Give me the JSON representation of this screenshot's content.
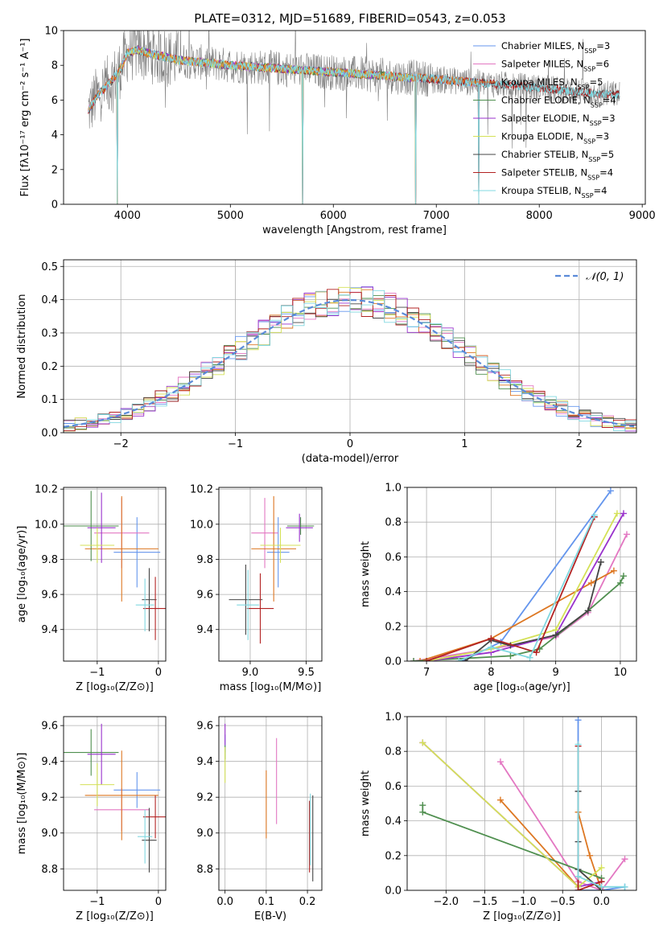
{
  "title": "PLATE=0312, MJD=51689, FIBERID=0543, z=0.053",
  "colors": {
    "Chabrier MILES": "#6495ED",
    "Salpeter MILES": "#E377C2",
    "Kroupa MILES": "#DD7722",
    "Chabrier ELODIE": "#4F8F4F",
    "Salpeter ELODIE": "#9932CC",
    "Kroupa ELODIE": "#D4E157",
    "Chabrier STELIB": "#444444",
    "Salpeter STELIB": "#B22222",
    "Kroupa STELIB": "#80D8E0",
    "data": "#808080",
    "gauss": "#5B8BD8"
  },
  "chart_data": [
    {
      "id": "spectrum",
      "type": "line",
      "title": "PLATE=0312, MJD=51689, FIBERID=0543, z=0.053",
      "xlabel": "wavelength [Angstrom, rest frame]",
      "ylabel": "Flux [fλ10⁻¹⁷ erg cm⁻² s⁻¹ A⁻¹]",
      "xlim": [
        3380,
        9030
      ],
      "ylim": [
        0,
        10
      ],
      "xticks": [
        4000,
        5000,
        6000,
        7000,
        8000,
        9000
      ],
      "yticks": [
        0,
        2,
        4,
        6,
        8,
        10
      ],
      "grid": false,
      "legend": "top-right",
      "legend_entries": [
        {
          "name": "Chabrier MILES",
          "nssp": "3"
        },
        {
          "name": "Salpeter MILES",
          "nssp": "6"
        },
        {
          "name": "Kroupa MILES",
          "nssp": "5"
        },
        {
          "name": "Chabrier ELODIE",
          "nssp": "4"
        },
        {
          "name": "Salpeter ELODIE",
          "nssp": "3"
        },
        {
          "name": "Kroupa ELODIE",
          "nssp": "3"
        },
        {
          "name": "Chabrier STELIB",
          "nssp": "5"
        },
        {
          "name": "Salpeter STELIB",
          "nssp": "4"
        },
        {
          "name": "Kroupa STELIB",
          "nssp": "4"
        }
      ],
      "data_range": [
        3620,
        8780
      ],
      "continuum": {
        "wavelength": [
          3620,
          3700,
          3800,
          3900,
          3950,
          4000,
          4100,
          4200,
          4500,
          5000,
          5500,
          6000,
          6500,
          7000,
          7400,
          8000,
          8500,
          8780
        ],
        "flux": [
          5.4,
          6.2,
          6.8,
          7.5,
          8.0,
          8.7,
          8.9,
          8.7,
          8.3,
          8.0,
          7.8,
          7.6,
          7.4,
          7.2,
          7.0,
          6.7,
          6.4,
          6.3
        ]
      },
      "model_ranges": {
        "MILES": [
          3620,
          7410
        ],
        "ELODIE": [
          3900,
          6800
        ],
        "STELIB": [
          3620,
          8780
        ]
      },
      "model_dropouts": [
        3900,
        5700,
        6800,
        7410
      ]
    },
    {
      "id": "residuals",
      "type": "histogram",
      "xlabel": "(data-model)/error",
      "ylabel": "Normed distribution",
      "xlim": [
        -2.5,
        2.5
      ],
      "ylim": [
        0,
        0.52
      ],
      "xticks": [
        -2,
        -1,
        0,
        1,
        2
      ],
      "yticks": [
        0.0,
        0.1,
        0.2,
        0.3,
        0.4,
        0.5
      ],
      "grid": true,
      "legend": "top-right",
      "legend_entries": [
        {
          "name": "𝒩(0, 1)"
        }
      ],
      "bin_width": 0.1,
      "model_curve": "gaussian mean 0 sigma 1"
    },
    {
      "id": "age-vs-Z",
      "type": "errorbar",
      "xlabel": "Z [log₁₀(Z/Z⊙)]",
      "ylabel": "age  [log₁₀(age/yr)]",
      "xlim": [
        -1.55,
        0.12
      ],
      "ylim": [
        9.22,
        10.21
      ],
      "xticks": [
        -1,
        0
      ],
      "yticks": [
        9.4,
        9.6,
        9.8,
        10.0,
        10.2
      ],
      "grid": true,
      "points": [
        {
          "model": "Chabrier MILES",
          "x": -0.35,
          "y": 9.84,
          "xerr": 0.38,
          "yerr": 0.2
        },
        {
          "model": "Salpeter MILES",
          "x": -0.6,
          "y": 9.95,
          "xerr": 0.45,
          "yerr": 0.2
        },
        {
          "model": "Kroupa MILES",
          "x": -0.6,
          "y": 9.86,
          "xerr": 0.6,
          "yerr": 0.3
        },
        {
          "model": "Chabrier ELODIE",
          "x": -1.1,
          "y": 9.99,
          "xerr": 0.45,
          "yerr": 0.2
        },
        {
          "model": "Salpeter ELODIE",
          "x": -0.93,
          "y": 9.98,
          "xerr": 0.23,
          "yerr": 0.2
        },
        {
          "model": "Kroupa ELODIE",
          "x": -1.0,
          "y": 9.88,
          "xerr": 0.28,
          "yerr": 0.1
        },
        {
          "model": "Chabrier STELIB",
          "x": -0.15,
          "y": 9.57,
          "xerr": 0.12,
          "yerr": 0.18
        },
        {
          "model": "Salpeter STELIB",
          "x": -0.05,
          "y": 9.52,
          "xerr": 0.2,
          "yerr": 0.18
        },
        {
          "model": "Kroupa STELIB",
          "x": -0.22,
          "y": 9.54,
          "xerr": 0.15,
          "yerr": 0.15
        }
      ]
    },
    {
      "id": "age-vs-mass",
      "type": "errorbar",
      "xlabel": "mass [log₁₀(M/M⊙)]",
      "ylabel": "",
      "xlim": [
        8.72,
        9.64
      ],
      "ylim": [
        9.22,
        10.21
      ],
      "xticks": [
        9.0,
        9.5
      ],
      "yticks": [
        9.4,
        9.6,
        9.8,
        10.0,
        10.2
      ],
      "grid": true,
      "points": [
        {
          "model": "Chabrier MILES",
          "x": 9.25,
          "y": 9.84,
          "xerr": 0.1,
          "yerr": 0.2
        },
        {
          "model": "Salpeter MILES",
          "x": 9.13,
          "y": 9.95,
          "xerr": 0.12,
          "yerr": 0.2
        },
        {
          "model": "Kroupa MILES",
          "x": 9.21,
          "y": 9.86,
          "xerr": 0.2,
          "yerr": 0.3
        },
        {
          "model": "Chabrier ELODIE",
          "x": 9.45,
          "y": 9.99,
          "xerr": 0.12,
          "yerr": 0.05
        },
        {
          "model": "Salpeter ELODIE",
          "x": 9.44,
          "y": 9.98,
          "xerr": 0.12,
          "yerr": 0.08
        },
        {
          "model": "Kroupa ELODIE",
          "x": 9.27,
          "y": 9.88,
          "xerr": 0.18,
          "yerr": 0.1
        },
        {
          "model": "Chabrier STELIB",
          "x": 8.96,
          "y": 9.57,
          "xerr": 0.15,
          "yerr": 0.2
        },
        {
          "model": "Salpeter STELIB",
          "x": 9.09,
          "y": 9.52,
          "xerr": 0.12,
          "yerr": 0.2
        },
        {
          "model": "Kroupa STELIB",
          "x": 8.98,
          "y": 9.54,
          "xerr": 0.1,
          "yerr": 0.2
        }
      ]
    },
    {
      "id": "massweight-vs-age",
      "type": "line",
      "xlabel": "age  [log₁₀(age/yr)]",
      "ylabel": "mass weight",
      "xlim": [
        6.7,
        10.25
      ],
      "ylim": [
        0,
        1
      ],
      "xticks": [
        7,
        8,
        9,
        10
      ],
      "yticks": [
        0.0,
        0.2,
        0.4,
        0.6,
        0.8,
        1.0
      ],
      "grid": true,
      "series": [
        {
          "model": "Chabrier MILES",
          "x": [
            7.55,
            8.15,
            9.85
          ],
          "y": [
            0.0,
            0.11,
            0.98
          ]
        },
        {
          "model": "Salpeter MILES",
          "x": [
            6.8,
            8.0,
            9.0,
            9.5,
            10.1
          ],
          "y": [
            0.0,
            0.07,
            0.14,
            0.28,
            0.73
          ]
        },
        {
          "model": "Kroupa MILES",
          "x": [
            6.9,
            8.0,
            9.55,
            9.9
          ],
          "y": [
            0.0,
            0.13,
            0.45,
            0.52
          ]
        },
        {
          "model": "Chabrier ELODIE",
          "x": [
            6.8,
            8.3,
            8.75,
            9.5,
            10.0,
            10.05
          ],
          "y": [
            0.0,
            0.03,
            0.07,
            0.29,
            0.45,
            0.49
          ]
        },
        {
          "model": "Salpeter ELODIE",
          "x": [
            7.0,
            8.0,
            9.0,
            10.05
          ],
          "y": [
            0.0,
            0.05,
            0.15,
            0.85
          ]
        },
        {
          "model": "Kroupa ELODIE",
          "x": [
            7.0,
            8.0,
            9.0,
            9.95
          ],
          "y": [
            0.0,
            0.07,
            0.18,
            0.85
          ]
        },
        {
          "model": "Chabrier STELIB",
          "x": [
            7.6,
            8.0,
            8.3,
            9.0,
            9.5,
            9.7
          ],
          "y": [
            0.0,
            0.12,
            0.09,
            0.15,
            0.29,
            0.57
          ]
        },
        {
          "model": "Salpeter STELIB",
          "x": [
            7.0,
            8.0,
            8.7,
            9.6
          ],
          "y": [
            0.0,
            0.13,
            0.05,
            0.83
          ]
        },
        {
          "model": "Kroupa STELIB",
          "x": [
            7.5,
            8.0,
            8.6,
            9.6
          ],
          "y": [
            0.0,
            0.08,
            0.02,
            0.84
          ]
        }
      ]
    },
    {
      "id": "mass-vs-Z",
      "type": "errorbar",
      "xlabel": "Z [log₁₀(Z/Z⊙)]",
      "ylabel": "mass [log₁₀(M/M⊙)]",
      "xlim": [
        -1.55,
        0.12
      ],
      "ylim": [
        8.68,
        9.65
      ],
      "xticks": [
        -1,
        0
      ],
      "yticks": [
        8.8,
        9.0,
        9.2,
        9.4,
        9.6
      ],
      "grid": true,
      "points": [
        {
          "model": "Chabrier MILES",
          "x": -0.35,
          "y": 9.24,
          "xerr": 0.38,
          "yerr": 0.1
        },
        {
          "model": "Salpeter MILES",
          "x": -0.6,
          "y": 9.13,
          "xerr": 0.45,
          "yerr": 0.12
        },
        {
          "model": "Kroupa MILES",
          "x": -0.6,
          "y": 9.21,
          "xerr": 0.6,
          "yerr": 0.25
        },
        {
          "model": "Chabrier ELODIE",
          "x": -1.1,
          "y": 9.45,
          "xerr": 0.45,
          "yerr": 0.13
        },
        {
          "model": "Salpeter ELODIE",
          "x": -0.93,
          "y": 9.44,
          "xerr": 0.23,
          "yerr": 0.17
        },
        {
          "model": "Kroupa ELODIE",
          "x": -1.0,
          "y": 9.27,
          "xerr": 0.28,
          "yerr": 0.12
        },
        {
          "model": "Chabrier STELIB",
          "x": -0.15,
          "y": 8.96,
          "xerr": 0.12,
          "yerr": 0.18
        },
        {
          "model": "Salpeter STELIB",
          "x": -0.05,
          "y": 9.09,
          "xerr": 0.2,
          "yerr": 0.12
        },
        {
          "model": "Kroupa STELIB",
          "x": -0.22,
          "y": 8.98,
          "xerr": 0.12,
          "yerr": 0.15
        }
      ]
    },
    {
      "id": "mass-vs-EBV",
      "type": "errorbar",
      "xlabel": "E(B-V)",
      "ylabel": "",
      "xlim": [
        -0.015,
        0.235
      ],
      "ylim": [
        8.68,
        9.65
      ],
      "xticks": [
        0.0,
        0.1,
        0.2
      ],
      "yticks": [
        8.8,
        9.0,
        9.2,
        9.4,
        9.6
      ],
      "grid": true,
      "points": [
        {
          "model": "Chabrier MILES",
          "x": 0.0,
          "y": 9.5,
          "xerr": 0,
          "yerr": 0.05
        },
        {
          "model": "Salpeter MILES",
          "x": 0.125,
          "y": 9.29,
          "xerr": 0,
          "yerr": 0.24
        },
        {
          "model": "Kroupa MILES",
          "x": 0.1,
          "y": 9.16,
          "xerr": 0,
          "yerr": 0.19
        },
        {
          "model": "Chabrier ELODIE",
          "x": 0.0,
          "y": 9.45,
          "xerr": 0,
          "yerr": 0.04
        },
        {
          "model": "Salpeter ELODIE",
          "x": 0.0,
          "y": 9.55,
          "xerr": 0,
          "yerr": 0.06
        },
        {
          "model": "Kroupa ELODIE",
          "x": 0.0,
          "y": 9.38,
          "xerr": 0,
          "yerr": 0.1
        },
        {
          "model": "Chabrier STELIB",
          "x": 0.213,
          "y": 8.97,
          "xerr": 0,
          "yerr": 0.24
        },
        {
          "model": "Salpeter STELIB",
          "x": 0.205,
          "y": 8.98,
          "xerr": 0,
          "yerr": 0.2
        },
        {
          "model": "Kroupa STELIB",
          "x": 0.207,
          "y": 9.02,
          "xerr": 0,
          "yerr": 0.2
        }
      ]
    },
    {
      "id": "massweight-vs-Z",
      "type": "line",
      "xlabel": "Z [log₁₀(Z/Z⊙)]",
      "ylabel": "mass weight",
      "xlim": [
        -2.5,
        0.45
      ],
      "ylim": [
        0,
        1
      ],
      "xticks": [
        -2.0,
        -1.5,
        -1.0,
        -0.5,
        0.0
      ],
      "yticks": [
        0.0,
        0.2,
        0.4,
        0.6,
        0.8,
        1.0
      ],
      "grid": true,
      "series": [
        {
          "model": "Chabrier MILES",
          "x": [
            -0.3,
            -0.3,
            0.0,
            0.3
          ],
          "y": [
            0.98,
            0.0,
            0.0,
            0.02
          ]
        },
        {
          "model": "Salpeter MILES",
          "x": [
            -1.3,
            -0.3,
            0.0,
            0.3
          ],
          "y": [
            0.74,
            0.05,
            0.0,
            0.18
          ]
        },
        {
          "model": "Kroupa MILES",
          "x": [
            -1.3,
            -0.3,
            -0.3,
            -0.15,
            0.0
          ],
          "y": [
            0.52,
            0.02,
            0.45,
            0.2,
            0.0
          ]
        },
        {
          "model": "Chabrier ELODIE",
          "x": [
            -2.3,
            -2.3,
            0.0
          ],
          "y": [
            0.49,
            0.45,
            0.07
          ]
        },
        {
          "model": "Salpeter ELODIE",
          "x": [
            -2.3,
            -0.3,
            0.0
          ],
          "y": [
            0.85,
            0.02,
            0.05
          ]
        },
        {
          "model": "Kroupa ELODIE",
          "x": [
            -2.3,
            -0.3,
            0.0
          ],
          "y": [
            0.85,
            0.02,
            0.13
          ]
        },
        {
          "model": "Chabrier STELIB",
          "x": [
            -0.3,
            -0.3,
            -0.3,
            0.0
          ],
          "y": [
            0.57,
            0.28,
            0.12,
            0.0
          ]
        },
        {
          "model": "Salpeter STELIB",
          "x": [
            -0.3,
            -0.3,
            0.0
          ],
          "y": [
            0.83,
            0.0,
            0.05
          ]
        },
        {
          "model": "Kroupa STELIB",
          "x": [
            -0.3,
            -0.3,
            0.0,
            0.3
          ],
          "y": [
            0.84,
            0.08,
            0.02,
            0.02
          ]
        }
      ]
    }
  ]
}
